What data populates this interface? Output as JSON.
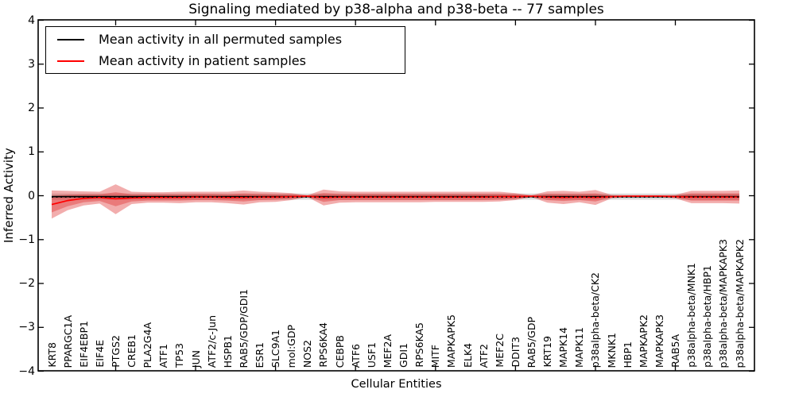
{
  "title": "Signaling mediated by p38-alpha and p38-beta -- 77 samples",
  "axes": {
    "x_label": "Cellular Entities",
    "y_label": "Inferred Activity",
    "y_tick_labels": [
      "4",
      "3",
      "2",
      "1",
      "0",
      "−1",
      "−2",
      "−3",
      "−4"
    ]
  },
  "legend": {
    "items": [
      {
        "label": "Mean activity in all permuted samples",
        "color": "#000000"
      },
      {
        "label": "Mean activity in patient samples",
        "color": "#ff0000"
      }
    ]
  },
  "chart_data": {
    "type": "line",
    "title": "Signaling mediated by p38-alpha and p38-beta -- 77 samples",
    "xlabel": "Cellular Entities",
    "ylabel": "Inferred Activity",
    "ylim": [
      -4,
      4
    ],
    "grid": false,
    "legend_position": "upper left",
    "x_major_tick_indices": [
      4,
      9,
      14,
      19,
      24,
      29,
      34,
      39
    ],
    "categories": [
      "KRT8",
      "PPARGC1A",
      "EIF4EBP1",
      "EIF4E",
      "PTGS2",
      "CREB1",
      "PLA2G4A",
      "ATF1",
      "TP53",
      "JUN",
      "ATF2/c-Jun",
      "HSPB1",
      "RAB5/GDP/GDI1",
      "ESR1",
      "SLC9A1",
      "mol:GDP",
      "NOS2",
      "RPS6KA4",
      "CEBPB",
      "ATF6",
      "USF1",
      "MEF2A",
      "GDI1",
      "RPS6KA5",
      "MITF",
      "MAPKAPK5",
      "ELK4",
      "ATF2",
      "MEF2C",
      "DDIT3",
      "RAB5/GDP",
      "KRT19",
      "MAPK14",
      "MAPK11",
      "p38alpha-beta/CK2",
      "MKNK1",
      "HBP1",
      "MAPKAPK2",
      "MAPKAPK3",
      "RAB5A",
      "p38alpha-beta/MNK1",
      "p38alpha-beta/HBP1",
      "p38alpha-beta/MAPKAPK3",
      "p38alpha-beta/MAPKAPK2"
    ],
    "series": [
      {
        "key": "permuted-mean-line",
        "name": "Mean activity in all permuted samples",
        "color": "#000000",
        "style": "solid",
        "values": -0.02
      },
      {
        "key": "patient-mean-line",
        "name": "Mean activity in patient samples",
        "color": "#ff0000",
        "style": "solid",
        "values": [
          -0.2,
          -0.11,
          -0.06,
          -0.04,
          -0.07,
          -0.05,
          -0.04,
          -0.04,
          -0.04,
          -0.03,
          -0.03,
          -0.04,
          -0.04,
          -0.03,
          -0.03,
          -0.02,
          -0.01,
          -0.04,
          -0.03,
          -0.03,
          -0.03,
          -0.03,
          -0.03,
          -0.03,
          -0.03,
          -0.03,
          -0.03,
          -0.03,
          -0.02,
          -0.02,
          -0.01,
          -0.03,
          -0.04,
          -0.03,
          -0.04,
          -0.02,
          -0.01,
          -0.01,
          -0.01,
          -0.02,
          -0.03,
          -0.03,
          -0.03,
          -0.03
        ]
      },
      {
        "key": "permuted-mean-dotted-line",
        "name": "Permuted mean (dotted overlay)",
        "color": "#000000",
        "style": "dotted",
        "values": -0.03
      }
    ],
    "bands": [
      {
        "key": "permuted-std-band",
        "name": "Std of activity in permuted samples",
        "color": "rgba(120,120,120,0.28)",
        "upper": 0.05,
        "lower": -0.09
      },
      {
        "key": "patient-std-outer-band",
        "name": "Patient samples outer band",
        "color": "rgba(220,40,40,0.38)",
        "upper": [
          0.12,
          0.11,
          0.1,
          0.09,
          0.26,
          0.09,
          0.08,
          0.08,
          0.09,
          0.09,
          0.09,
          0.09,
          0.12,
          0.09,
          0.08,
          0.06,
          0.01,
          0.14,
          0.1,
          0.09,
          0.09,
          0.09,
          0.09,
          0.09,
          0.09,
          0.09,
          0.09,
          0.09,
          0.09,
          0.06,
          0.01,
          0.1,
          0.11,
          0.09,
          0.13,
          0.02,
          0.01,
          0.01,
          0.01,
          0.02,
          0.11,
          0.11,
          0.11,
          0.12
        ],
        "lower": [
          -0.52,
          -0.33,
          -0.22,
          -0.18,
          -0.42,
          -0.19,
          -0.16,
          -0.16,
          -0.17,
          -0.15,
          -0.15,
          -0.17,
          -0.2,
          -0.15,
          -0.14,
          -0.1,
          -0.03,
          -0.22,
          -0.16,
          -0.15,
          -0.15,
          -0.15,
          -0.15,
          -0.15,
          -0.14,
          -0.14,
          -0.14,
          -0.14,
          -0.13,
          -0.1,
          -0.03,
          -0.16,
          -0.19,
          -0.15,
          -0.21,
          -0.06,
          -0.03,
          -0.03,
          -0.03,
          -0.06,
          -0.17,
          -0.17,
          -0.17,
          -0.18
        ]
      },
      {
        "key": "patient-std-inner-band",
        "name": "Patient samples inner band",
        "color": "rgba(220,40,40,0.38)",
        "upper": [
          0.0,
          0.02,
          0.03,
          0.03,
          0.08,
          0.03,
          0.03,
          0.03,
          0.03,
          0.04,
          0.04,
          0.03,
          0.05,
          0.04,
          0.03,
          0.03,
          0.0,
          0.06,
          0.04,
          0.04,
          0.04,
          0.04,
          0.04,
          0.04,
          0.04,
          0.04,
          0.04,
          0.04,
          0.04,
          0.03,
          0.0,
          0.04,
          0.04,
          0.04,
          0.05,
          0.0,
          0.0,
          0.0,
          0.0,
          0.0,
          0.05,
          0.05,
          0.05,
          0.05
        ],
        "lower": [
          -0.38,
          -0.24,
          -0.15,
          -0.12,
          -0.24,
          -0.13,
          -0.11,
          -0.11,
          -0.11,
          -0.1,
          -0.1,
          -0.11,
          -0.13,
          -0.1,
          -0.09,
          -0.07,
          -0.02,
          -0.14,
          -0.1,
          -0.1,
          -0.1,
          -0.1,
          -0.1,
          -0.1,
          -0.1,
          -0.1,
          -0.1,
          -0.1,
          -0.09,
          -0.07,
          -0.02,
          -0.1,
          -0.12,
          -0.1,
          -0.13,
          -0.04,
          -0.02,
          -0.02,
          -0.02,
          -0.04,
          -0.11,
          -0.11,
          -0.11,
          -0.11
        ]
      }
    ]
  }
}
